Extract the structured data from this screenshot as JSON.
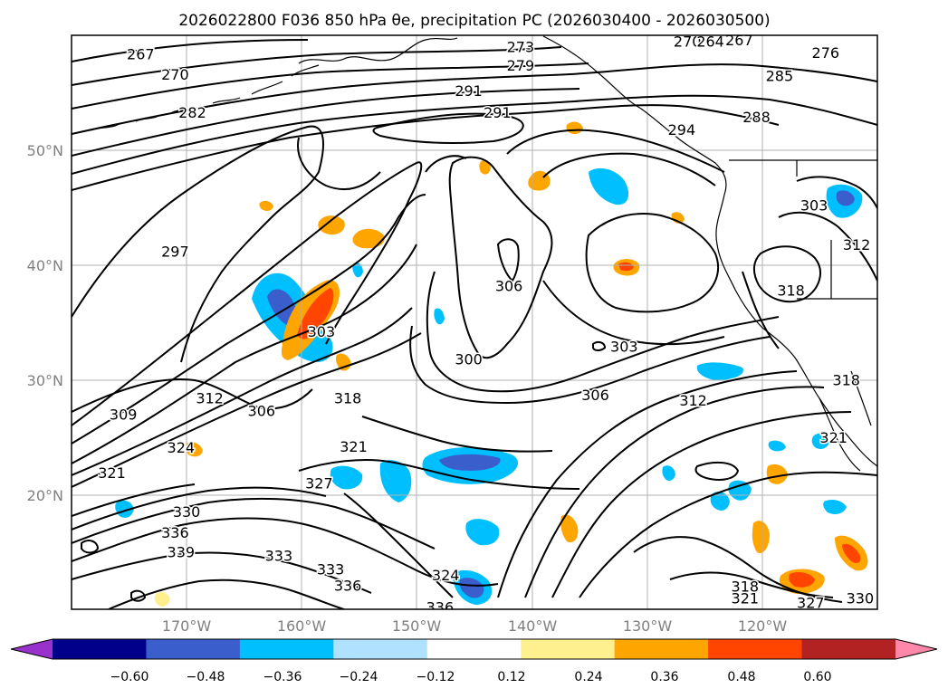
{
  "title": "2026022800 F036 850 hPa θe, precipitation PC (2026030400 - 2026030500)",
  "map": {
    "lon_labels": [
      "170°W",
      "160°W",
      "150°W",
      "140°W",
      "130°W",
      "120°W"
    ],
    "lat_labels": [
      "50°N",
      "40°N",
      "30°N",
      "20°N"
    ],
    "lon_range": [
      -180,
      -110
    ],
    "lat_range": [
      10,
      60
    ],
    "contour_labels": [
      {
        "text": "267",
        "lon": -174,
        "lat": 58.4
      },
      {
        "text": "270",
        "lon": -171,
        "lat": 56.6
      },
      {
        "text": "282",
        "lon": -169.5,
        "lat": 53.3
      },
      {
        "text": "273",
        "lon": -141,
        "lat": 59.0
      },
      {
        "text": "279",
        "lon": -141,
        "lat": 57.4
      },
      {
        "text": "270",
        "lon": -126.5,
        "lat": 59.5
      },
      {
        "text": "264",
        "lon": -124.5,
        "lat": 59.5
      },
      {
        "text": "267",
        "lon": -122,
        "lat": 59.6
      },
      {
        "text": "276",
        "lon": -114.5,
        "lat": 58.5
      },
      {
        "text": "285",
        "lon": -118.5,
        "lat": 56.5
      },
      {
        "text": "288",
        "lon": -120.5,
        "lat": 52.9
      },
      {
        "text": "294",
        "lon": -127,
        "lat": 51.8
      },
      {
        "text": "291",
        "lon": -145.5,
        "lat": 55.2
      },
      {
        "text": "291",
        "lon": -143,
        "lat": 53.3
      },
      {
        "text": "297",
        "lon": -171,
        "lat": 41.2
      },
      {
        "text": "303",
        "lon": -115.5,
        "lat": 45.2
      },
      {
        "text": "312",
        "lon": -111.8,
        "lat": 41.8
      },
      {
        "text": "318",
        "lon": -117.5,
        "lat": 37.8
      },
      {
        "text": "306",
        "lon": -142,
        "lat": 38.2
      },
      {
        "text": "303",
        "lon": -158.3,
        "lat": 34.2
      },
      {
        "text": "300",
        "lon": -145.5,
        "lat": 31.8
      },
      {
        "text": "303",
        "lon": -132,
        "lat": 32.9
      },
      {
        "text": "306",
        "lon": -134.5,
        "lat": 28.7
      },
      {
        "text": "312",
        "lon": -126,
        "lat": 28.2
      },
      {
        "text": "318",
        "lon": -112.7,
        "lat": 30.0
      },
      {
        "text": "318",
        "lon": -156,
        "lat": 28.4
      },
      {
        "text": "312",
        "lon": -168,
        "lat": 28.4
      },
      {
        "text": "306",
        "lon": -163.5,
        "lat": 27.3
      },
      {
        "text": "309",
        "lon": -175.5,
        "lat": 27.0
      },
      {
        "text": "324",
        "lon": -170.5,
        "lat": 24.1
      },
      {
        "text": "321",
        "lon": -155.5,
        "lat": 24.2
      },
      {
        "text": "321",
        "lon": -176.5,
        "lat": 21.9
      },
      {
        "text": "327",
        "lon": -158.5,
        "lat": 21.0
      },
      {
        "text": "321",
        "lon": -113.8,
        "lat": 25.0
      },
      {
        "text": "330",
        "lon": -170,
        "lat": 18.5
      },
      {
        "text": "336",
        "lon": -171,
        "lat": 16.7
      },
      {
        "text": "339",
        "lon": -170.5,
        "lat": 15.0
      },
      {
        "text": "333",
        "lon": -162,
        "lat": 14.7
      },
      {
        "text": "333",
        "lon": -157.5,
        "lat": 13.5
      },
      {
        "text": "336",
        "lon": -156,
        "lat": 12.1
      },
      {
        "text": "324",
        "lon": -147.5,
        "lat": 13.0
      },
      {
        "text": "336",
        "lon": -148,
        "lat": 10.2
      },
      {
        "text": "318",
        "lon": -121.5,
        "lat": 12.0
      },
      {
        "text": "321",
        "lon": -121.5,
        "lat": 11.0
      },
      {
        "text": "327",
        "lon": -115.8,
        "lat": 10.6
      },
      {
        "text": "330",
        "lon": -111.5,
        "lat": 11.0
      }
    ]
  },
  "colorbar": {
    "tick_labels": [
      "−0.60",
      "−0.48",
      "−0.36",
      "−0.24",
      "−0.12",
      "0.12",
      "0.24",
      "0.36",
      "0.48",
      "0.60"
    ],
    "colors": [
      "#9932cc",
      "#00008b",
      "#3a5fcd",
      "#00bfff",
      "#b0e2ff",
      "#ffffff",
      "#fff08f",
      "#ffa500",
      "#ff4500",
      "#b22222",
      "#ff88aa"
    ]
  }
}
